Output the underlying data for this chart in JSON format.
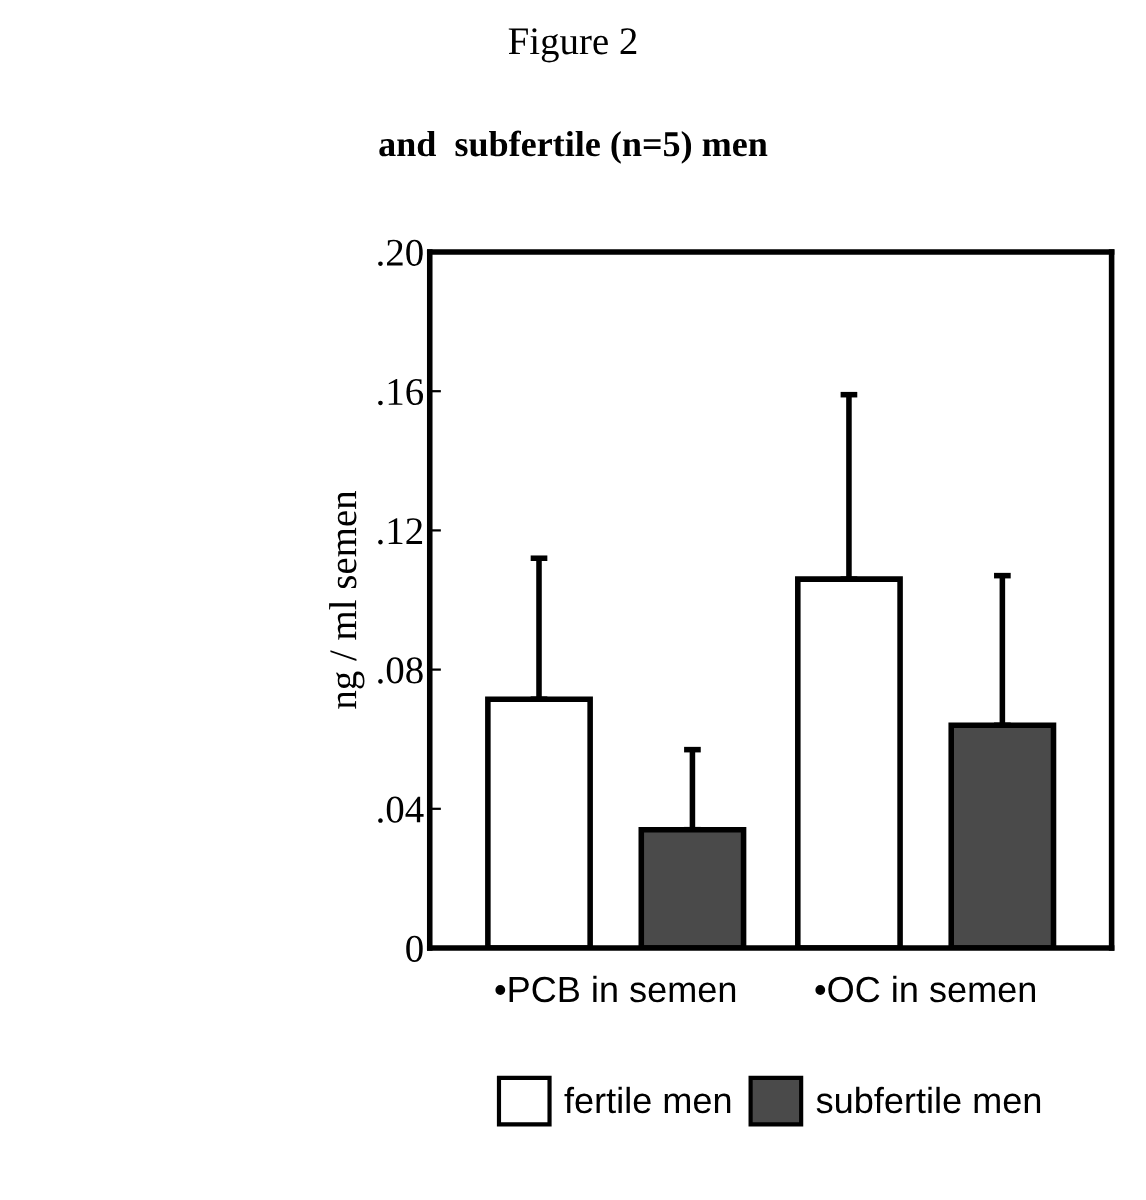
{
  "chart_data": {
    "type": "bar",
    "title": "Figure 2",
    "subtitle": "and  subfertile (n=5) men",
    "ylabel": "ng / ml semen",
    "categories": [
      "•PCB in semen",
      "•OC in semen"
    ],
    "series": [
      {
        "name": "fertile men",
        "color": "#ffffff",
        "values": [
          0.0715,
          0.106
        ],
        "errors": [
          [
            0.0715,
            0.112
          ],
          [
            0.106,
            0.159
          ]
        ]
      },
      {
        "name": "subfertile men",
        "color": "#4a4a4a",
        "values": [
          0.034,
          0.064
        ],
        "errors": [
          [
            0.034,
            0.057
          ],
          [
            0.064,
            0.107
          ]
        ]
      }
    ],
    "ylim": [
      0,
      0.2
    ],
    "yticks": [
      0,
      {
        "value": 0.04,
        "label": ".04"
      },
      {
        "value": 0.08,
        "label": ".08"
      },
      {
        "value": 0.12,
        "label": ".12"
      },
      {
        "value": 0.16,
        "label": ".16"
      },
      {
        "value": 0.2,
        "label": ".20"
      }
    ],
    "legend": "bottom",
    "grid": false
  }
}
